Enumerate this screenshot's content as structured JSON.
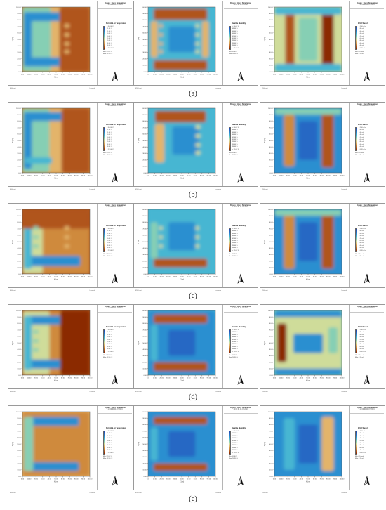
{
  "panel_header": {
    "title": "Figure : Hero Simulation",
    "time_stamps": [
      "12:00:01 01.07.2024",
      "12:00:01 01.07.2024",
      "12:00:01 01.07.2024"
    ]
  },
  "axis": {
    "xlabel": "X (m)",
    "ylabel": "Y (m)",
    "ticks": [
      "0.00",
      "10.00",
      "20.00",
      "30.00",
      "40.00",
      "50.00",
      "60.00",
      "70.00",
      "80.00",
      "90.00",
      "100.00"
    ]
  },
  "variables": [
    {
      "name": "Potential Air Temperature",
      "ticks": [
        "< 27.50 °C",
        "28.00 °C",
        "28.50 °C",
        "29.00 °C",
        "29.50 °C",
        "30.00 °C",
        "30.50 °C",
        "31.00 °C",
        "31.50 °C",
        "> 32.00 °C"
      ],
      "min": "Min: 27.21 °C",
      "max": "Max: 32.30 °C"
    },
    {
      "name": "Relative Humidity",
      "ticks": [
        "< 32.00 %",
        "34.00 %",
        "36.00 %",
        "38.00 %",
        "40.00 %",
        "42.00 %",
        "44.00 %",
        "46.00 %",
        "48.00 %",
        "> 50.00 %"
      ],
      "min": "Min: 31.40 %",
      "max": "Max: 50.90 %"
    },
    {
      "name": "Wind Speed",
      "ticks": [
        "< 0.20 m/s",
        "0.40 m/s",
        "0.60 m/s",
        "0.80 m/s",
        "1.00 m/s",
        "1.20 m/s",
        "1.40 m/s",
        "1.60 m/s",
        "1.80 m/s",
        "> 2.00 m/s"
      ],
      "min": "Min: 0.14 m/s",
      "max": "Max: 2.11 m/s"
    }
  ],
  "footer": {
    "left": "ENVI-met",
    "right": "Leonardo"
  },
  "captions": [
    "(a)",
    "(b)",
    "(c)",
    "(d)",
    "(e)"
  ],
  "colors": {
    "palette_warm_to_cool": [
      "#8b2a06",
      "#b0541a",
      "#cf8a3d",
      "#e3b46a",
      "#cfdc9a",
      "#86cfb4",
      "#47b6d2",
      "#2b8fd0",
      "#2767c4",
      "#2447ad"
    ]
  },
  "chart_data": [
    {
      "type": "heatmap",
      "row": "a",
      "variable": "Potential Air Temperature",
      "xlim": [
        0,
        100
      ],
      "ylim": [
        0,
        100
      ],
      "pattern": "cool E-shape on left, warm right"
    },
    {
      "type": "heatmap",
      "row": "a",
      "variable": "Relative Humidity",
      "xlim": [
        0,
        100
      ],
      "ylim": [
        0,
        100
      ],
      "pattern": "humid top and bottom bands, drier centre"
    },
    {
      "type": "heatmap",
      "row": "a",
      "variable": "Wind Speed",
      "xlim": [
        0,
        100
      ],
      "ylim": [
        0,
        100
      ],
      "pattern": "calm vertical bands at left and right"
    },
    {
      "type": "heatmap",
      "row": "b",
      "variable": "Potential Air Temperature",
      "xlim": [
        0,
        100
      ],
      "ylim": [
        0,
        100
      ],
      "pattern": "cool E-shape on left, warm right"
    },
    {
      "type": "heatmap",
      "row": "b",
      "variable": "Relative Humidity",
      "xlim": [
        0,
        100
      ],
      "ylim": [
        0,
        100
      ],
      "pattern": "humid top band, drier centre"
    },
    {
      "type": "heatmap",
      "row": "b",
      "variable": "Wind Speed",
      "xlim": [
        0,
        100
      ],
      "ylim": [
        0,
        100
      ],
      "pattern": "calm vertical bands at left and right"
    },
    {
      "type": "heatmap",
      "row": "c",
      "variable": "Potential Air Temperature",
      "xlim": [
        0,
        100
      ],
      "ylim": [
        0,
        100
      ],
      "pattern": "cool bottom band and left column, warm top"
    },
    {
      "type": "heatmap",
      "row": "c",
      "variable": "Relative Humidity",
      "xlim": [
        0,
        100
      ],
      "ylim": [
        0,
        100
      ],
      "pattern": "humid bottom band, drier centre"
    },
    {
      "type": "heatmap",
      "row": "c",
      "variable": "Wind Speed",
      "xlim": [
        0,
        100
      ],
      "ylim": [
        0,
        100
      ],
      "pattern": "calm vertical bands at left and right"
    },
    {
      "type": "heatmap",
      "row": "d",
      "variable": "Potential Air Temperature",
      "xlim": [
        0,
        100
      ],
      "ylim": [
        0,
        100
      ],
      "pattern": "cool top and bottom bands, warm right"
    },
    {
      "type": "heatmap",
      "row": "d",
      "variable": "Relative Humidity",
      "xlim": [
        0,
        100
      ],
      "ylim": [
        0,
        100
      ],
      "pattern": "humid top and bottom bands"
    },
    {
      "type": "heatmap",
      "row": "d",
      "variable": "Wind Speed",
      "xlim": [
        0,
        100
      ],
      "ylim": [
        0,
        100
      ],
      "pattern": "calm left column, ring of slow air"
    },
    {
      "type": "heatmap",
      "row": "e",
      "variable": "Potential Air Temperature",
      "xlim": [
        0,
        100
      ],
      "ylim": [
        0,
        100
      ],
      "pattern": "cool top and bottom bands, warm middle"
    },
    {
      "type": "heatmap",
      "row": "e",
      "variable": "Relative Humidity",
      "xlim": [
        0,
        100
      ],
      "ylim": [
        0,
        100
      ],
      "pattern": "humid top and bottom bands, cool-toned centre"
    },
    {
      "type": "heatmap",
      "row": "e",
      "variable": "Wind Speed",
      "xlim": [
        0,
        100
      ],
      "ylim": [
        0,
        100
      ],
      "pattern": "mostly fast air, calm right column"
    }
  ]
}
